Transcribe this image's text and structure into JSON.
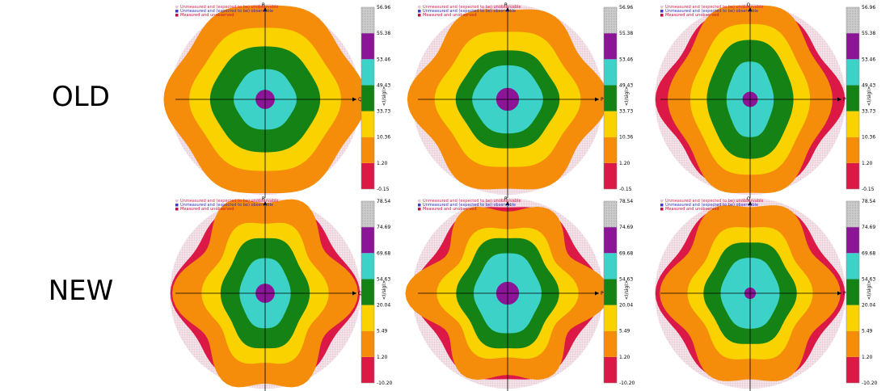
{
  "row_labels": [
    "OLD",
    "NEW"
  ],
  "legend": {
    "items": [
      {
        "label": "Unmeasured and (expected to be) unobservable",
        "color": "#e8c8d0",
        "text_color": "#d6204e"
      },
      {
        "label": "Unmeasured and (expected to be) observable",
        "color": "#3d3dd0",
        "text_color": "#2a2ac0"
      },
      {
        "label": "Measured and unobserved",
        "color": "#c0103a",
        "text_color": "#c0103a"
      }
    ]
  },
  "colorbar": {
    "label": "<I/sigI>",
    "colors_bottom_to_top": [
      "#dc1946",
      "#f58c0a",
      "#fad200",
      "#148214",
      "#3cd2c8",
      "#8c1496",
      "#c8c8c8"
    ]
  },
  "chart_data": [
    {
      "type": "heatmap",
      "row": "OLD",
      "panel": 1,
      "h_axis": "Q",
      "v_axis": "R",
      "ticks": [
        "-0.15",
        "1.20",
        "10.36",
        "33.73",
        "49.43",
        "53.46",
        "55.38",
        "56.96"
      ],
      "rings": [
        {
          "level": 2,
          "r": 0.5,
          "lobes": 0.04,
          "aspect": 1.0
        },
        {
          "level": 3,
          "r": 0.38,
          "lobes": 0.03,
          "aspect": 1.0
        },
        {
          "level": 4,
          "r": 0.28,
          "lobes": 0.02,
          "aspect": 1.0
        },
        {
          "level": 5,
          "r": 0.16,
          "lobes": 0.02,
          "aspect": 1.0
        },
        {
          "level": 6,
          "r": 0.05,
          "lobes": 0.0,
          "aspect": 1.0
        }
      ]
    },
    {
      "type": "heatmap",
      "row": "OLD",
      "panel": 2,
      "h_axis": "P",
      "v_axis": "R",
      "ticks": [
        "-0.15",
        "1.20",
        "10.36",
        "33.73",
        "49.43",
        "53.46",
        "55.38",
        "56.96"
      ],
      "rings": [
        {
          "level": 2,
          "r": 0.48,
          "lobes": 0.06,
          "aspect": 1.0
        },
        {
          "level": 3,
          "r": 0.36,
          "lobes": 0.04,
          "aspect": 1.0
        },
        {
          "level": 4,
          "r": 0.26,
          "lobes": 0.03,
          "aspect": 1.0
        },
        {
          "level": 5,
          "r": 0.18,
          "lobes": 0.02,
          "aspect": 1.0
        },
        {
          "level": 6,
          "r": 0.06,
          "lobes": 0.0,
          "aspect": 1.0
        }
      ]
    },
    {
      "type": "heatmap",
      "row": "OLD",
      "panel": 3,
      "h_axis": "P",
      "v_axis": "Q",
      "ticks": [
        "-0.15",
        "1.20",
        "10.36",
        "33.73",
        "49.43",
        "53.46",
        "55.38",
        "56.96"
      ],
      "rings": [
        {
          "level": 2,
          "r": 0.4,
          "lobes": 0.05,
          "aspect": 0.8
        },
        {
          "level": 3,
          "r": 0.3,
          "lobes": 0.03,
          "aspect": 0.75
        },
        {
          "level": 4,
          "r": 0.22,
          "lobes": 0.02,
          "aspect": 0.7
        },
        {
          "level": 5,
          "r": 0.12,
          "lobes": 0.02,
          "aspect": 0.6
        },
        {
          "level": 6,
          "r": 0.04,
          "lobes": 0.0,
          "aspect": 1.0
        }
      ]
    },
    {
      "type": "heatmap",
      "row": "NEW",
      "panel": 1,
      "h_axis": "Q",
      "v_axis": "R",
      "ticks": [
        "-10.20",
        "1.20",
        "5.49",
        "20.04",
        "54.63",
        "69.68",
        "74.69",
        "78.54"
      ],
      "rings": [
        {
          "level": 2,
          "r": 0.42,
          "lobes": 0.1,
          "aspect": 0.85
        },
        {
          "level": 3,
          "r": 0.3,
          "lobes": 0.07,
          "aspect": 0.8
        },
        {
          "level": 4,
          "r": 0.22,
          "lobes": 0.04,
          "aspect": 0.75
        },
        {
          "level": 5,
          "r": 0.13,
          "lobes": 0.02,
          "aspect": 0.7
        },
        {
          "level": 6,
          "r": 0.05,
          "lobes": 0.0,
          "aspect": 1.0
        }
      ]
    },
    {
      "type": "heatmap",
      "row": "NEW",
      "panel": 2,
      "h_axis": "P",
      "v_axis": "R",
      "ticks": [
        "-10.20",
        "1.20",
        "5.49",
        "20.04",
        "54.63",
        "69.68",
        "74.69",
        "78.54"
      ],
      "rings": [
        {
          "level": 2,
          "r": 0.45,
          "lobes": 0.12,
          "aspect": 1.0
        },
        {
          "level": 3,
          "r": 0.33,
          "lobes": 0.08,
          "aspect": 0.95
        },
        {
          "level": 4,
          "r": 0.25,
          "lobes": 0.05,
          "aspect": 0.85
        },
        {
          "level": 5,
          "r": 0.17,
          "lobes": 0.03,
          "aspect": 0.8
        },
        {
          "level": 6,
          "r": 0.06,
          "lobes": 0.0,
          "aspect": 1.0
        }
      ]
    },
    {
      "type": "heatmap",
      "row": "NEW",
      "panel": 3,
      "h_axis": "P",
      "v_axis": "Q",
      "ticks": [
        "-10.20",
        "1.20",
        "5.49",
        "20.04",
        "54.63",
        "69.68",
        "74.69",
        "78.54"
      ],
      "rings": [
        {
          "level": 2,
          "r": 0.42,
          "lobes": 0.08,
          "aspect": 0.9
        },
        {
          "level": 3,
          "r": 0.3,
          "lobes": 0.06,
          "aspect": 0.85
        },
        {
          "level": 4,
          "r": 0.23,
          "lobes": 0.04,
          "aspect": 0.85
        },
        {
          "level": 5,
          "r": 0.15,
          "lobes": 0.02,
          "aspect": 0.8
        },
        {
          "level": 6,
          "r": 0.03,
          "lobes": 0.0,
          "aspect": 1.0
        }
      ]
    }
  ]
}
